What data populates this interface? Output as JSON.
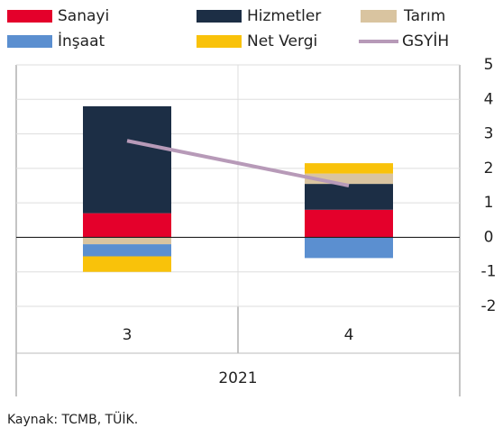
{
  "chart_data": {
    "type": "bar",
    "stacked": true,
    "categories": [
      "3",
      "4"
    ],
    "group_label": "2021",
    "series": [
      {
        "name": "Sanayi",
        "color": "#e4002b",
        "values": [
          0.7,
          0.8
        ]
      },
      {
        "name": "Hizmetler",
        "color": "#1c2e45",
        "values": [
          3.1,
          0.75
        ]
      },
      {
        "name": "Tarım",
        "color": "#d9c4a0",
        "values": [
          -0.2,
          0.3
        ]
      },
      {
        "name": "İnşaat",
        "color": "#5b8fd0",
        "values": [
          -0.35,
          -0.6
        ]
      },
      {
        "name": "Net Vergi",
        "color": "#f9c20a",
        "values": [
          -0.45,
          0.3
        ]
      },
      {
        "name": "GSYİH",
        "color": "#b79ab8",
        "type": "line",
        "values": [
          2.8,
          1.5
        ]
      }
    ],
    "ylim": [
      -2,
      5
    ],
    "yticks": [
      5,
      4,
      3,
      2,
      1,
      0,
      -1,
      -2
    ],
    "grid": true,
    "source": "Kaynak: TCMB, TÜİK."
  }
}
